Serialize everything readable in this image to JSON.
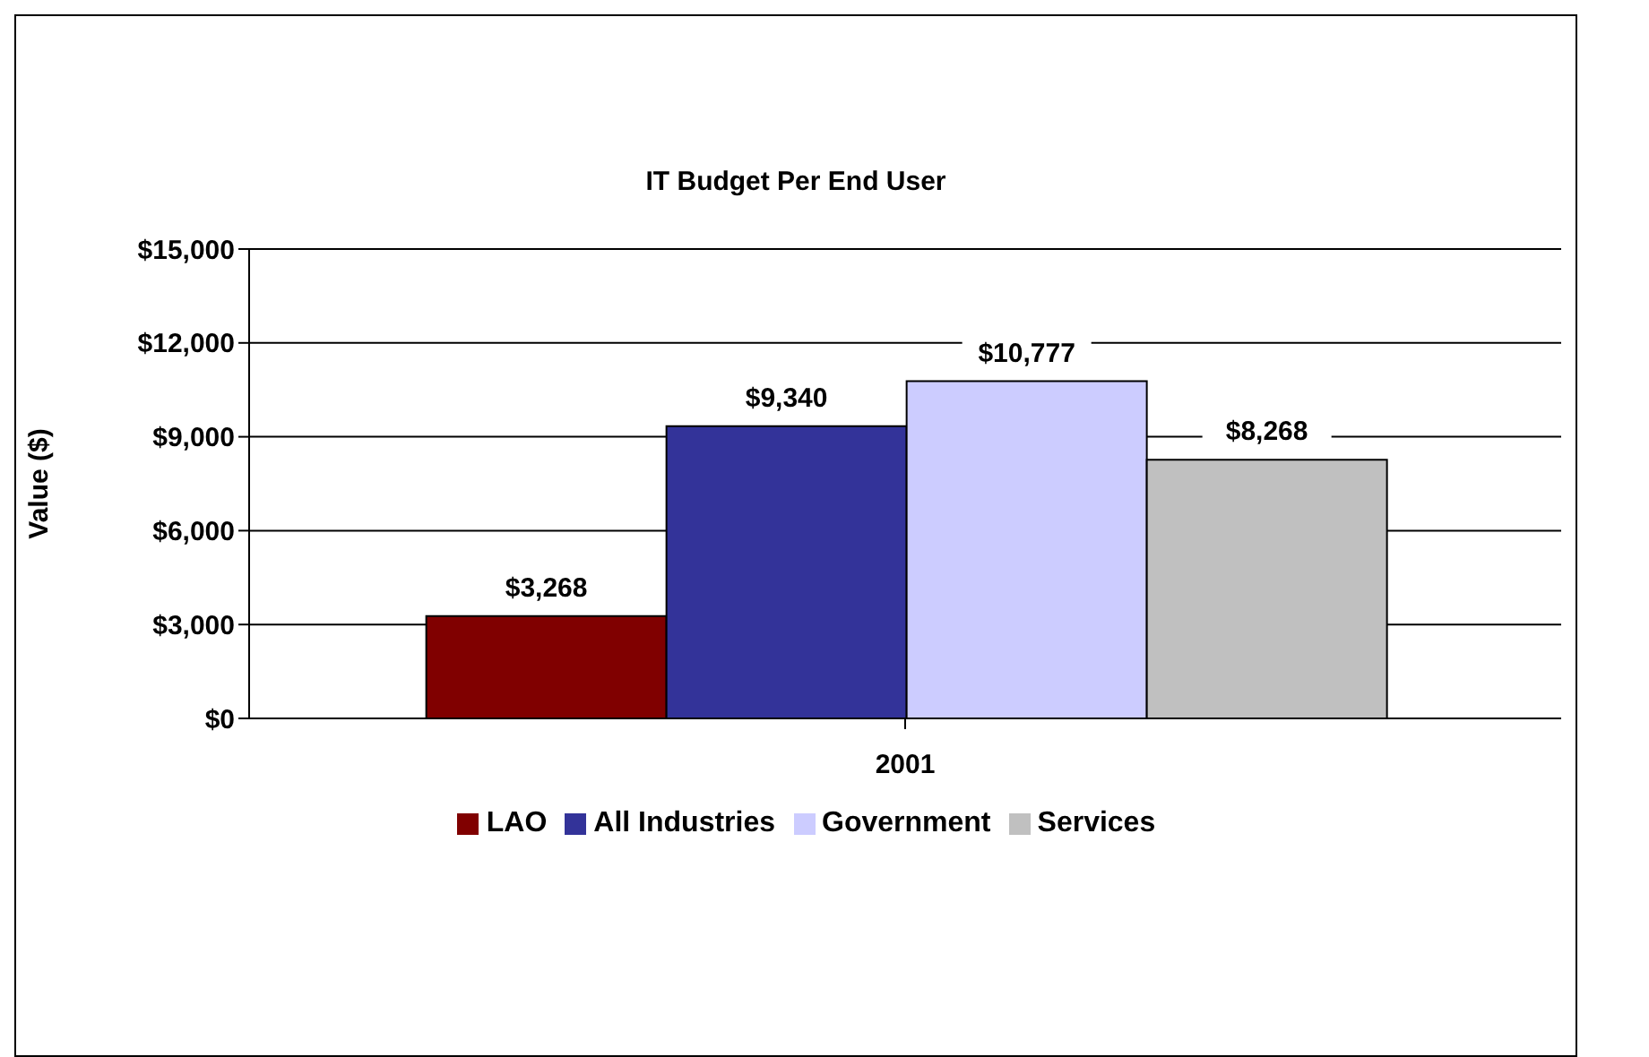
{
  "chart_data": {
    "type": "bar",
    "title": "IT Budget Per End User",
    "ylabel": "Value ($)",
    "categories": [
      "2001"
    ],
    "series": [
      {
        "name": "LAO",
        "color": "#800000",
        "values": [
          3268
        ],
        "value_labels": [
          "$3,268"
        ]
      },
      {
        "name": "All Industries",
        "color": "#333399",
        "values": [
          9340
        ],
        "value_labels": [
          "$9,340"
        ]
      },
      {
        "name": "Government",
        "color": "#ccccff",
        "values": [
          10777
        ],
        "value_labels": [
          "$10,777"
        ]
      },
      {
        "name": "Services",
        "color": "#c0c0c0",
        "values": [
          8268
        ],
        "value_labels": [
          "$8,268"
        ]
      }
    ],
    "ylim": [
      0,
      15000
    ],
    "yticks": [
      {
        "value": 0,
        "label": "$0"
      },
      {
        "value": 3000,
        "label": "$3,000"
      },
      {
        "value": 6000,
        "label": "$6,000"
      },
      {
        "value": 9000,
        "label": "$9,000"
      },
      {
        "value": 12000,
        "label": "$12,000"
      },
      {
        "value": 15000,
        "label": "$15,000"
      }
    ],
    "grid": "y",
    "legend": "bottom"
  }
}
